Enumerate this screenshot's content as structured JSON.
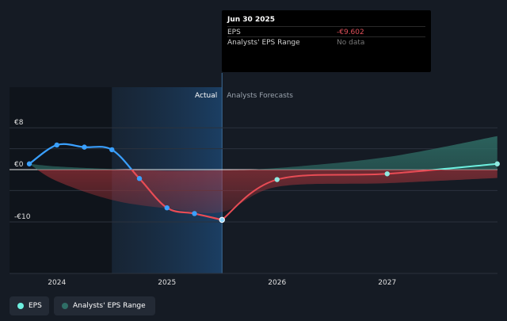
{
  "tooltip": {
    "date": "Jun 30 2025",
    "rows": [
      {
        "label": "EPS",
        "value": "-€9.602",
        "color": "#e0505a"
      },
      {
        "label": "Analysts' EPS Range",
        "value": "No data",
        "color": "#777777"
      }
    ]
  },
  "legend": {
    "eps_label": "EPS",
    "range_label": "Analysts' EPS Range"
  },
  "colors": {
    "actual_line": "#3aa0ff",
    "forecast_line_neg": "#e84c55",
    "forecast_line_pos": "#6ef0e0",
    "range_neg": "#c0393f",
    "range_pos": "#2f6e66",
    "background": "#151b24"
  },
  "chart_data": {
    "type": "line",
    "sections": {
      "actual_label": "Actual",
      "forecast_label": "Analysts Forecasts"
    },
    "y_ticks": [
      {
        "value": 8,
        "label": "€8"
      },
      {
        "value": 0,
        "label": "€0"
      },
      {
        "value": -10,
        "label": "-€10"
      }
    ],
    "x_ticks": [
      {
        "value": 2024,
        "label": "2024"
      },
      {
        "value": 2025,
        "label": "2025"
      },
      {
        "value": 2026,
        "label": "2026"
      },
      {
        "value": 2027,
        "label": "2027"
      }
    ],
    "xlim": [
      2023.75,
      2028.0
    ],
    "ylim": [
      -10,
      8
    ],
    "highlight_range": [
      2024.5,
      2025.5
    ],
    "series": [
      {
        "name": "EPS",
        "kind": "actual",
        "x": [
          2023.75,
          2024.0,
          2024.25,
          2024.5,
          2024.75,
          2025.0,
          2025.25,
          2025.5
        ],
        "y": [
          1.1,
          4.7,
          4.3,
          3.8,
          -1.7,
          -7.3,
          -8.4,
          -9.602
        ]
      },
      {
        "name": "EPS",
        "kind": "forecast",
        "x": [
          2025.5,
          2026.0,
          2027.0,
          2028.0
        ],
        "y": [
          -9.602,
          -1.9,
          -0.8,
          1.1
        ]
      }
    ],
    "range": {
      "x": [
        2023.75,
        2024.0,
        2024.5,
        2025.0,
        2025.5,
        2026.0,
        2027.0,
        2028.0
      ],
      "low": [
        1.1,
        -2.2,
        -5.8,
        -7.4,
        -8.1,
        -3.3,
        -2.6,
        -1.6
      ],
      "high": [
        1.1,
        0.6,
        0.1,
        -0.2,
        -0.1,
        0.3,
        2.4,
        6.4
      ]
    }
  }
}
